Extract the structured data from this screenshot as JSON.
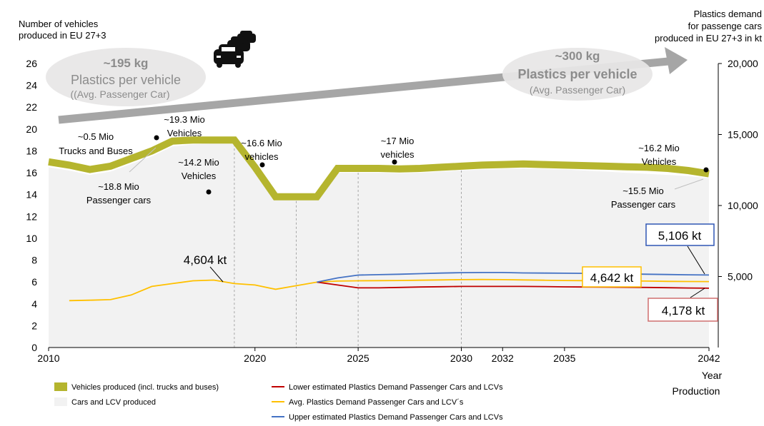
{
  "chart_data": {
    "type": "line",
    "left_axis_title": [
      "Number of vehicles",
      "produced in EU 27+3"
    ],
    "right_axis_title": [
      "Plastics demand",
      "for passenge cars",
      "produced in EU 27+3 in kt"
    ],
    "x_axis_title": [
      "Year",
      "Production"
    ],
    "ylim_left": [
      0,
      26
    ],
    "yticks_left": [
      0,
      2,
      4,
      6,
      8,
      10,
      12,
      14,
      16,
      18,
      20,
      22,
      24,
      26
    ],
    "ylim_right": [
      0,
      20000
    ],
    "yticks_right": [
      {
        "v": 5000,
        "label": "5,000"
      },
      {
        "v": 10000,
        "label": "10,000"
      },
      {
        "v": 15000,
        "label": "15,000"
      },
      {
        "v": 20000,
        "label": "20,000"
      }
    ],
    "xlim": [
      2010,
      2042
    ],
    "xticks": [
      2010,
      2020,
      2025,
      2030,
      2032,
      2035,
      2042
    ],
    "grid": false,
    "series": [
      {
        "name": "Vehicles produced (incl. trucks and buses)",
        "axis": "left",
        "color": "#b5b52e",
        "x": [
          2010,
          2011,
          2012,
          2013,
          2014,
          2015,
          2016,
          2017,
          2018,
          2019,
          2020,
          2021,
          2022,
          2023,
          2024,
          2025,
          2026,
          2027,
          2028,
          2029,
          2030,
          2031,
          2032,
          2033,
          2034,
          2035,
          2036,
          2037,
          2038,
          2039,
          2040,
          2041,
          2042
        ],
        "values": [
          17.0,
          16.7,
          16.3,
          16.6,
          17.3,
          18.0,
          18.9,
          19.0,
          19.0,
          19.0,
          16.5,
          13.8,
          13.8,
          13.8,
          16.4,
          16.4,
          16.4,
          16.35,
          16.4,
          16.5,
          16.6,
          16.7,
          16.75,
          16.8,
          16.75,
          16.7,
          16.65,
          16.6,
          16.55,
          16.5,
          16.4,
          16.2,
          15.9
        ]
      },
      {
        "name": "Cars and LCV produced",
        "axis": "left",
        "color": "#f2f2f2",
        "x": [
          2010,
          2011,
          2012,
          2013,
          2014,
          2015,
          2016,
          2017,
          2018,
          2019,
          2020,
          2021,
          2022,
          2023,
          2024,
          2025,
          2026,
          2027,
          2028,
          2029,
          2030,
          2031,
          2032,
          2033,
          2034,
          2035,
          2036,
          2037,
          2038,
          2039,
          2040,
          2041,
          2042
        ],
        "values": [
          16.5,
          16.2,
          15.8,
          16.1,
          16.8,
          17.5,
          18.4,
          18.6,
          18.7,
          18.8,
          16.0,
          13.6,
          13.6,
          13.6,
          16.0,
          16.0,
          16.0,
          15.95,
          16.0,
          16.1,
          16.2,
          16.3,
          16.35,
          16.4,
          16.35,
          16.3,
          16.2,
          16.1,
          16.0,
          15.9,
          15.8,
          15.7,
          15.5
        ]
      },
      {
        "name": "Avg. Plastics Demand Passenger Cars and LCV´s",
        "axis": "right",
        "color": "#ffc000",
        "x": [
          2011,
          2012,
          2013,
          2014,
          2015,
          2016,
          2017,
          2018,
          2019,
          2020,
          2021,
          2022,
          2023,
          2024,
          2025,
          2026,
          2027,
          2028,
          2029,
          2030,
          2031,
          2032,
          2033,
          2034,
          2035,
          2036,
          2037,
          2038,
          2039,
          2040,
          2041,
          2042
        ],
        "values": [
          3300,
          3330,
          3370,
          3700,
          4300,
          4500,
          4700,
          4750,
          4500,
          4400,
          4100,
          4350,
          4604,
          4680,
          4700,
          4710,
          4720,
          4740,
          4760,
          4780,
          4790,
          4780,
          4760,
          4740,
          4720,
          4710,
          4700,
          4690,
          4680,
          4660,
          4650,
          4642
        ]
      },
      {
        "name": "Lower estimated Plastics Demand Passenger Cars and LCVs",
        "axis": "right",
        "color": "#c00000",
        "x": [
          2023,
          2024,
          2025,
          2026,
          2027,
          2028,
          2029,
          2030,
          2031,
          2032,
          2033,
          2034,
          2035,
          2036,
          2037,
          2038,
          2039,
          2040,
          2041,
          2042
        ],
        "values": [
          4604,
          4400,
          4200,
          4200,
          4230,
          4260,
          4280,
          4300,
          4300,
          4300,
          4300,
          4290,
          4270,
          4260,
          4250,
          4240,
          4230,
          4210,
          4190,
          4178
        ]
      },
      {
        "name": "Upper estimated Plastics Demand Passenger Cars and LCVs",
        "axis": "right",
        "color": "#4472c4",
        "x": [
          2023,
          2024,
          2025,
          2026,
          2027,
          2028,
          2029,
          2030,
          2031,
          2032,
          2033,
          2034,
          2035,
          2036,
          2037,
          2038,
          2039,
          2040,
          2041,
          2042
        ],
        "values": [
          4604,
          4900,
          5100,
          5130,
          5160,
          5200,
          5240,
          5270,
          5280,
          5280,
          5250,
          5240,
          5230,
          5220,
          5200,
          5180,
          5160,
          5140,
          5120,
          5106
        ]
      }
    ],
    "vertical_guides": [
      2019,
      2022,
      2025,
      2030
    ],
    "annotations": {
      "a_195": "~195 kg",
      "b_195": "Plastics per vehicle",
      "c_195": "((Avg. Passenger Car)",
      "a_300": "~300 kg",
      "b_300": "Plastics per vehicle",
      "c_300": "(Avg. Passenger Car)",
      "trucks_1": "~0.5 Mio",
      "trucks_2": "Trucks and Buses",
      "v193_1": "~19.3 Mio",
      "v193_2": "Vehicles",
      "p188_1": "~18.8 Mio",
      "p188_2": "Passenger cars",
      "v142_1": "~14.2 Mio",
      "v142_2": "Vehicles",
      "v166_1": "~16.6 Mio",
      "v166_2": "vehicles",
      "v17_1": "~17 Mio",
      "v17_2": "vehicles",
      "v162_1": "~16.2 Mio",
      "v162_2": "Vehicles",
      "p155_1": "~15.5 Mio",
      "p155_2": "Passenger cars",
      "kt_4604": "4,604 kt",
      "kt_5106": "5,106 kt",
      "kt_4642": "4,642 kt",
      "kt_4178": "4,178 kt"
    },
    "legend": {
      "placement": "bottom",
      "items": [
        {
          "label": "Vehicles produced (incl. trucks and buses)",
          "color": "#b5b52e",
          "kind": "box"
        },
        {
          "label": "Cars and LCV produced",
          "color": "#f2f2f2",
          "kind": "box"
        },
        {
          "label": "Lower estimated Plastics Demand Passenger Cars and LCVs",
          "color": "#c00000",
          "kind": "line"
        },
        {
          "label": "Avg. Plastics Demand Passenger Cars and LCV´s",
          "color": "#ffc000",
          "kind": "line"
        },
        {
          "label": "Upper estimated Plastics Demand Passenger Cars and LCVs",
          "color": "#4472c4",
          "kind": "line"
        }
      ]
    },
    "icons": [
      "cars-icon"
    ]
  }
}
